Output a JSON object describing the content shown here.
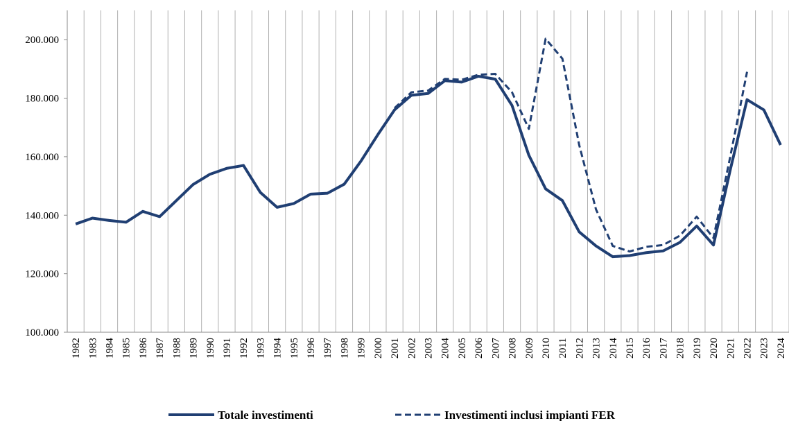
{
  "chart_data": {
    "type": "line",
    "categories": [
      "1982",
      "1983",
      "1984",
      "1985",
      "1986",
      "1987",
      "1988",
      "1989",
      "1990",
      "1991",
      "1992",
      "1993",
      "1994",
      "1995",
      "1996",
      "1997",
      "1998",
      "1999",
      "2000",
      "2001",
      "2002",
      "2003",
      "2004",
      "2005",
      "2006",
      "2007",
      "2008",
      "2009",
      "2010",
      "2011",
      "2012",
      "2013",
      "2014",
      "2015",
      "2016",
      "2017",
      "2018",
      "2019",
      "2020",
      "2021",
      "2022",
      "2023",
      "2024"
    ],
    "series": [
      {
        "name": "Totale investimenti",
        "color": "#203f73",
        "dash": false,
        "values": [
          137000,
          139000,
          138200,
          137600,
          141300,
          139500,
          145000,
          150500,
          154000,
          156000,
          157000,
          147800,
          142700,
          144000,
          147200,
          147500,
          150600,
          158500,
          167500,
          176000,
          181000,
          181600,
          186000,
          185500,
          187500,
          186500,
          177500,
          160500,
          149000,
          145000,
          134300,
          129500,
          125800,
          126200,
          127200,
          127800,
          130700,
          136300,
          129800,
          155500,
          179500,
          176000,
          164000
        ]
      },
      {
        "name": "Investimenti inclusi impianti FER",
        "color": "#203f73",
        "dash": true,
        "values": [
          null,
          null,
          null,
          null,
          null,
          null,
          null,
          null,
          null,
          null,
          null,
          null,
          null,
          null,
          null,
          null,
          null,
          null,
          null,
          176600,
          182000,
          182600,
          186600,
          186300,
          188000,
          188300,
          182000,
          169500,
          200300,
          193500,
          164000,
          142000,
          129500,
          127600,
          129200,
          129800,
          133000,
          139500,
          132200,
          160000,
          189000,
          null,
          null
        ]
      }
    ],
    "ylim": [
      100000,
      210000
    ],
    "yticks": [
      {
        "value": 100000,
        "label": "100.000"
      },
      {
        "value": 120000,
        "label": "120.000"
      },
      {
        "value": 140000,
        "label": "140.000"
      },
      {
        "value": 160000,
        "label": "160.000"
      },
      {
        "value": 180000,
        "label": "180.000"
      },
      {
        "value": 200000,
        "label": "200.000"
      }
    ],
    "grid": true
  }
}
